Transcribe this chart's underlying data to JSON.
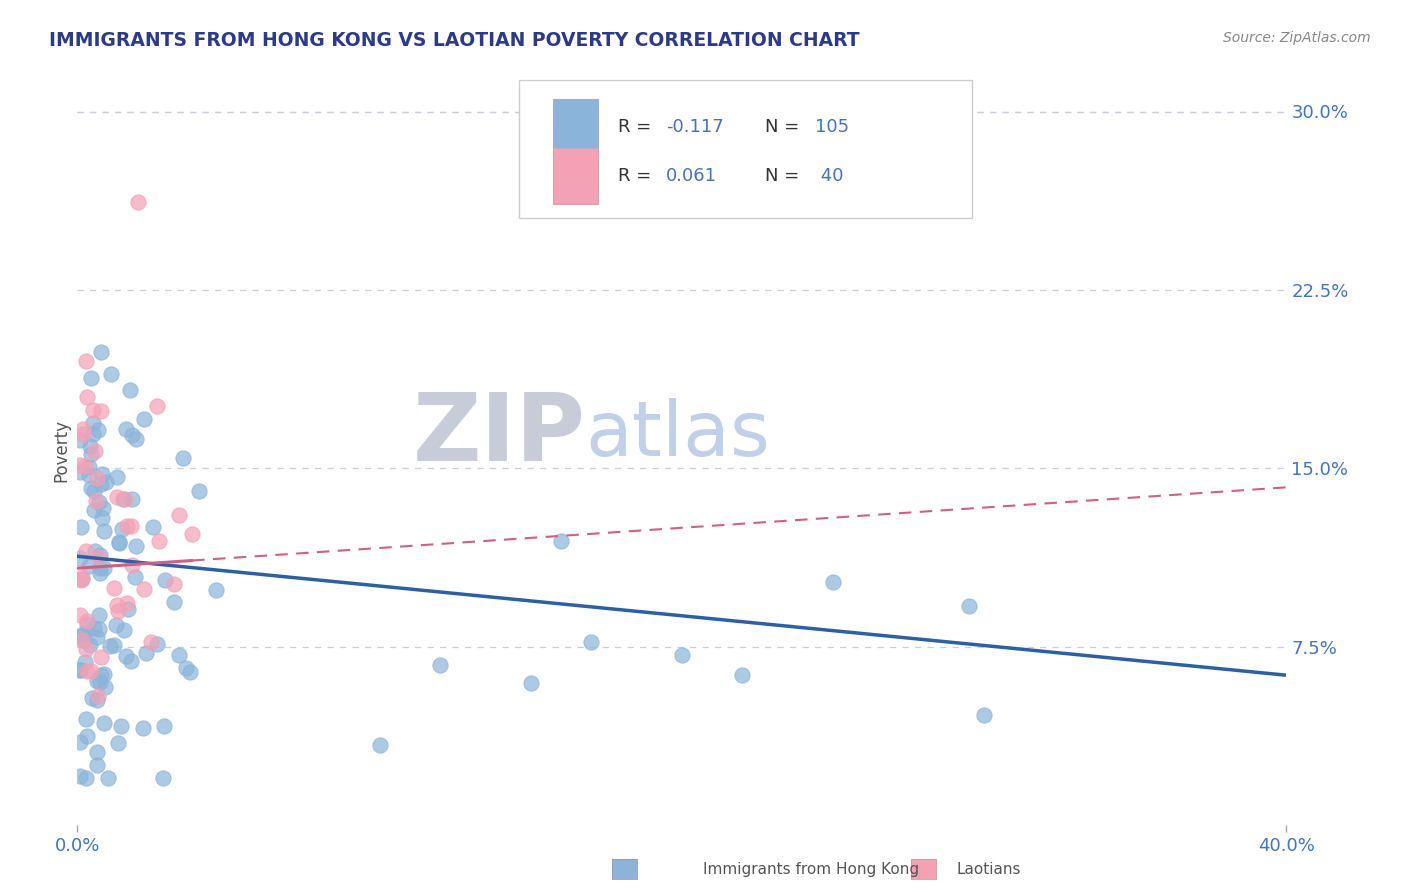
{
  "title": "IMMIGRANTS FROM HONG KONG VS LAOTIAN POVERTY CORRELATION CHART",
  "source_text": "Source: ZipAtlas.com",
  "ylabel": "Poverty",
  "xlim": [
    0.0,
    0.4
  ],
  "ylim": [
    0.0,
    0.315
  ],
  "xtick_labels": [
    "0.0%",
    "40.0%"
  ],
  "xtick_values": [
    0.0,
    0.4
  ],
  "ytick_labels": [
    "30.0%",
    "22.5%",
    "15.0%",
    "7.5%"
  ],
  "ytick_values": [
    0.3,
    0.225,
    0.15,
    0.075
  ],
  "series1_name": "Immigrants from Hong Kong",
  "series1_color": "#8ab4d9",
  "series1_line_color": "#2b5fa8",
  "series1_R": -0.117,
  "series1_N": 105,
  "series2_name": "Laotians",
  "series2_color": "#f4a0b5",
  "series2_line_color": "#d06080",
  "series2_R": 0.061,
  "series2_N": 40,
  "legend_value_color": "#4472c4",
  "legend_label_color": "#333333",
  "watermark_ZIP_color": "#c8ccd8",
  "watermark_atlas_color": "#c0d0e8",
  "background_color": "#ffffff",
  "grid_color": "#ccccdd",
  "axis_color": "#4472c4",
  "title_color": "#2b3a8a",
  "source_color": "#888888"
}
